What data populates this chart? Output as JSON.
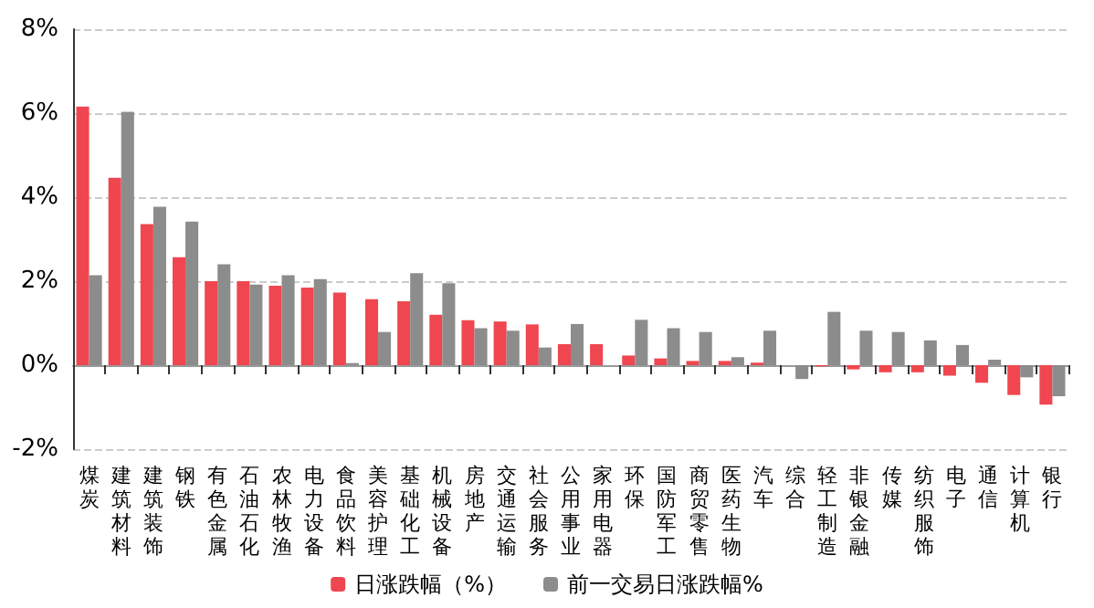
{
  "chart_data": {
    "type": "bar",
    "categories": [
      "煤炭",
      "建筑材料",
      "建筑装饰",
      "钢铁",
      "有色金属",
      "石油石化",
      "农林牧渔",
      "电力设备",
      "食品饮料",
      "美容护理",
      "基础化工",
      "机械设备",
      "房地产",
      "交通运输",
      "社会服务",
      "公用事业",
      "家用电器",
      "环保",
      "国防军工",
      "商贸零售",
      "医药生物",
      "汽车",
      "综合",
      "轻工制造",
      "非银金融",
      "传媒",
      "纺织服饰",
      "电子",
      "通信",
      "计算机",
      "银行"
    ],
    "series": [
      {
        "name": "日涨跌幅（%）",
        "color": "#f04650",
        "values": [
          6.16,
          4.46,
          3.36,
          2.57,
          2.0,
          2.0,
          1.89,
          1.85,
          1.73,
          1.57,
          1.52,
          1.2,
          1.07,
          1.04,
          0.97,
          0.5,
          0.5,
          0.23,
          0.16,
          0.1,
          0.1,
          0.06,
          0,
          -0.03,
          -0.1,
          -0.17,
          -0.17,
          -0.25,
          -0.42,
          -0.71,
          -0.94
        ]
      },
      {
        "name": "前一交易日涨跌幅%",
        "color": "#8c8c8c",
        "values": [
          2.14,
          6.03,
          3.77,
          3.42,
          2.4,
          1.92,
          2.14,
          2.05,
          0.05,
          0.79,
          2.19,
          1.95,
          0.88,
          0.82,
          0.42,
          0.98,
          0,
          1.08,
          0.88,
          0.79,
          0.19,
          0.82,
          -0.33,
          1.27,
          0.82,
          0.79,
          0.59,
          0.48,
          0.13,
          -0.29,
          -0.74
        ]
      }
    ],
    "ylim": [
      -2,
      8
    ],
    "yticks": [
      {
        "value": -2,
        "label": "-2%"
      },
      {
        "value": 0,
        "label": "0%"
      },
      {
        "value": 2,
        "label": "2%"
      },
      {
        "value": 4,
        "label": "4%"
      },
      {
        "value": 6,
        "label": "6%"
      },
      {
        "value": 8,
        "label": "8%"
      }
    ],
    "grid": "y",
    "legend": "bottom"
  }
}
